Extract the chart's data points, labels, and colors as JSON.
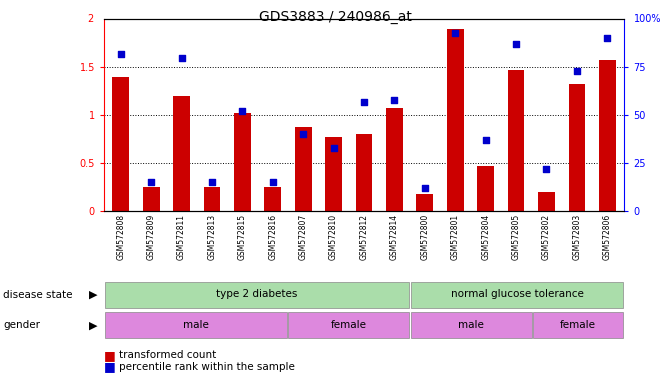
{
  "title": "GDS3883 / 240986_at",
  "samples": [
    "GSM572808",
    "GSM572809",
    "GSM572811",
    "GSM572813",
    "GSM572815",
    "GSM572816",
    "GSM572807",
    "GSM572810",
    "GSM572812",
    "GSM572814",
    "GSM572800",
    "GSM572801",
    "GSM572804",
    "GSM572805",
    "GSM572802",
    "GSM572803",
    "GSM572806"
  ],
  "transformed_count": [
    1.4,
    0.25,
    1.2,
    0.25,
    1.02,
    0.25,
    0.88,
    0.77,
    0.8,
    1.07,
    0.18,
    1.9,
    0.47,
    1.47,
    0.2,
    1.33,
    1.57
  ],
  "percentile_rank": [
    82,
    15,
    80,
    15,
    52,
    15,
    40,
    33,
    57,
    58,
    12,
    93,
    37,
    87,
    22,
    73,
    90
  ],
  "ylim_left": [
    0,
    2
  ],
  "ylim_right": [
    0,
    100
  ],
  "yticks_left": [
    0,
    0.5,
    1.0,
    1.5
  ],
  "ytick_labels_left": [
    "0",
    "0.5",
    "1",
    "1.5"
  ],
  "yticks_right": [
    0,
    25,
    50,
    75
  ],
  "ytick_labels_right": [
    "0",
    "25",
    "50",
    "75"
  ],
  "bar_color": "#cc0000",
  "dot_color": "#0000cc",
  "disease_color": "#aaddaa",
  "gender_color": "#dd88dd",
  "legend_items": [
    "transformed count",
    "percentile rank within the sample"
  ],
  "t2d_range": [
    0,
    10
  ],
  "ngt_range": [
    10,
    17
  ],
  "male_t2d_range": [
    0,
    6
  ],
  "female_t2d_range": [
    6,
    10
  ],
  "male_ngt_range": [
    10,
    14
  ],
  "female_ngt_range": [
    14,
    17
  ]
}
